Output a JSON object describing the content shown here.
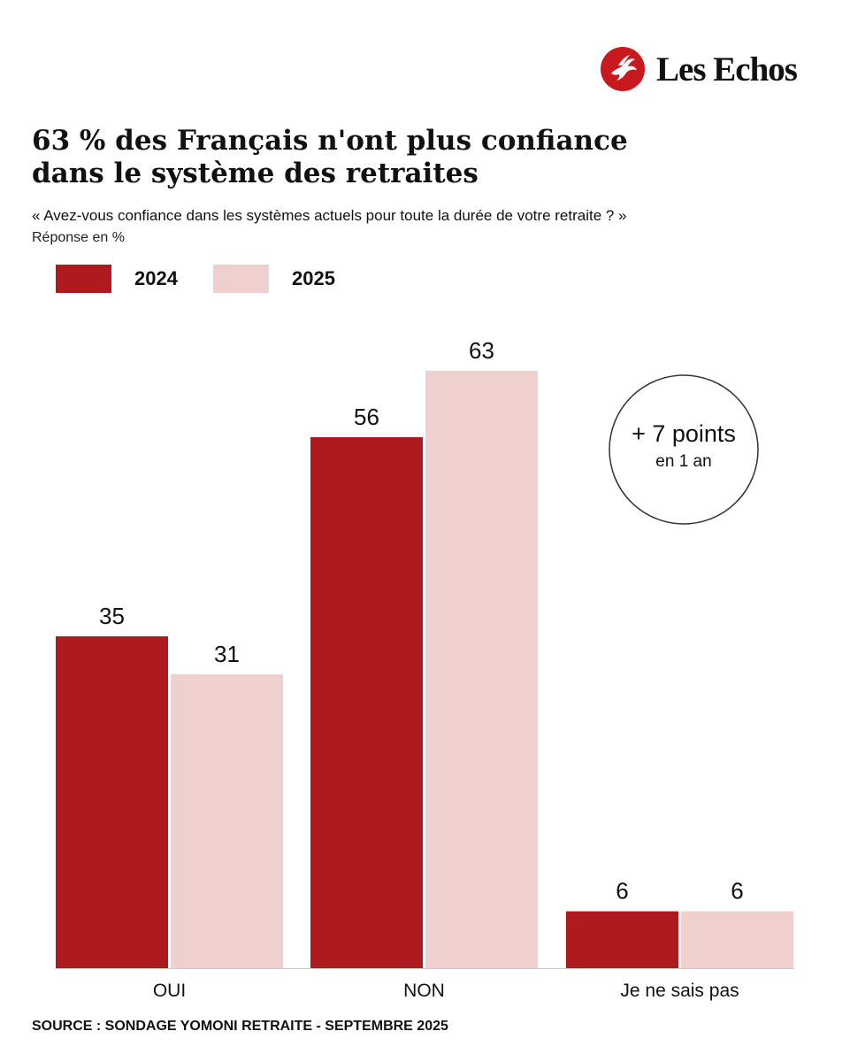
{
  "brand": {
    "name": "Les Echos"
  },
  "title_lines": [
    "63 % des Français n'ont plus confiance",
    "dans le système des retraites"
  ],
  "question": "« Avez-vous confiance dans les systèmes actuels pour toute la durée de votre retraite ? »",
  "unit_note": "Réponse en %",
  "legend": [
    {
      "label": "2024",
      "color": "#ae1a1e"
    },
    {
      "label": "2025",
      "color": "#f0cfcf"
    }
  ],
  "annotation": {
    "main": "+ 7 points",
    "sub": "en 1 an"
  },
  "source": "SOURCE : SONDAGE YOMONI RETRAITE - SEPTEMBRE 2025",
  "colors": {
    "red": "#ae1a1e",
    "pink": "#f0cfcf",
    "text": "#111111"
  },
  "chart_data": {
    "type": "bar",
    "title": "63 % des Français n'ont plus confiance dans le système des retraites",
    "categories": [
      "OUI",
      "NON",
      "Je ne sais pas"
    ],
    "series": [
      {
        "name": "2024",
        "values": [
          35,
          56,
          6
        ]
      },
      {
        "name": "2025",
        "values": [
          31,
          63,
          6
        ]
      }
    ],
    "xlabel": "",
    "ylabel": "Réponse en %",
    "ylim": [
      0,
      63
    ],
    "legend_position": "top-left",
    "grid": false
  }
}
